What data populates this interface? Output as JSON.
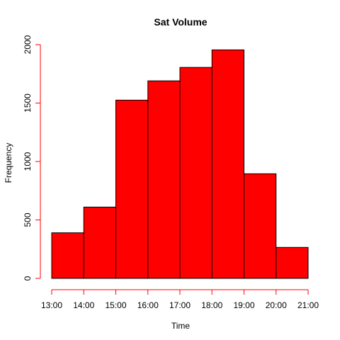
{
  "chart_data": {
    "type": "bar",
    "title": "Sat  Volume",
    "xlabel": "Time",
    "ylabel": "Frequency",
    "ylim": [
      0,
      2000
    ],
    "yticks": [
      0,
      500,
      1000,
      1500,
      2000
    ],
    "bin_edges": [
      "13:00",
      "14:00",
      "15:00",
      "16:00",
      "17:00",
      "18:00",
      "19:00",
      "20:00",
      "21:00"
    ],
    "values": [
      390,
      610,
      1525,
      1690,
      1805,
      1955,
      895,
      265
    ],
    "bar_color": "#ff0000",
    "axis_color": "#ff0000",
    "grid": false
  }
}
